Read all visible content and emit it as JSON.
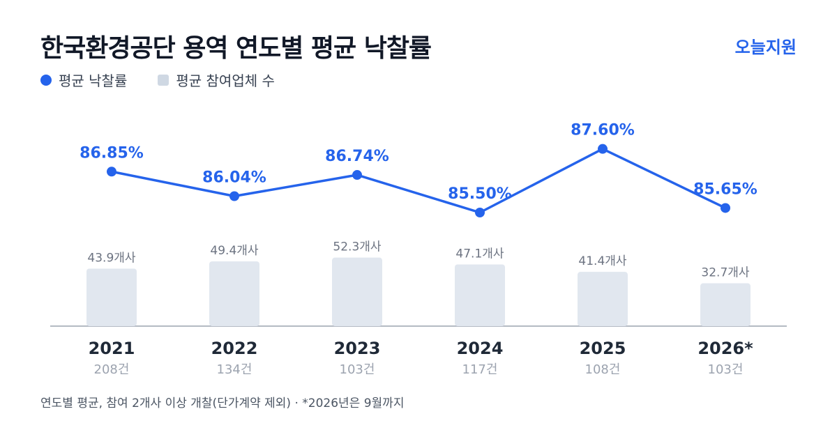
{
  "header": {
    "title": "한국환경공단 용역 연도별 평균 낙찰률",
    "brand": "오늘지원"
  },
  "legend": {
    "rate_label": "평균 낙찰률",
    "bidders_label": "평균 참여업체 수"
  },
  "colors": {
    "line": "#2563eb",
    "bar": "#e1e7ef",
    "axis": "#9ca3af"
  },
  "chart_data": {
    "type": "bar+line",
    "categories": [
      "2021",
      "2022",
      "2023",
      "2024",
      "2025",
      "2026*"
    ],
    "counts": [
      "208건",
      "134건",
      "103건",
      "117건",
      "108건",
      "103건"
    ],
    "series": [
      {
        "name": "평균 낙찰률",
        "type": "line",
        "values": [
          86.85,
          86.04,
          86.74,
          85.5,
          87.6,
          85.65
        ],
        "labels": [
          "86.85%",
          "86.04%",
          "86.74%",
          "85.50%",
          "87.60%",
          "85.65%"
        ]
      },
      {
        "name": "평균 참여업체 수",
        "type": "bar",
        "values": [
          43.9,
          49.4,
          52.3,
          47.1,
          41.4,
          32.7
        ],
        "labels": [
          "43.9개사",
          "49.4개사",
          "52.3개사",
          "47.1개사",
          "41.4개사",
          "32.7개사"
        ]
      }
    ],
    "legend_position": "top-left"
  },
  "footnote": "연도별 평균, 참여 2개사 이상 개찰(단가계약 제외) · *2026년은 9월까지"
}
